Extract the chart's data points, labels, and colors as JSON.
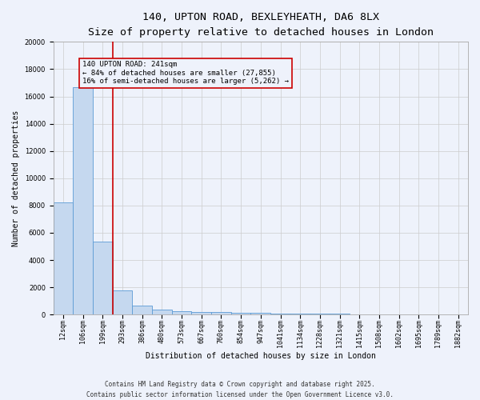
{
  "title_line1": "140, UPTON ROAD, BEXLEYHEATH, DA6 8LX",
  "title_line2": "Size of property relative to detached houses in London",
  "xlabel": "Distribution of detached houses by size in London",
  "ylabel": "Number of detached properties",
  "categories": [
    "12sqm",
    "106sqm",
    "199sqm",
    "293sqm",
    "386sqm",
    "480sqm",
    "573sqm",
    "667sqm",
    "760sqm",
    "854sqm",
    "947sqm",
    "1041sqm",
    "1134sqm",
    "1228sqm",
    "1321sqm",
    "1415sqm",
    "1508sqm",
    "1602sqm",
    "1695sqm",
    "1789sqm",
    "1882sqm"
  ],
  "values": [
    8200,
    16700,
    5350,
    1800,
    680,
    340,
    230,
    200,
    200,
    150,
    100,
    80,
    70,
    60,
    50,
    40,
    35,
    25,
    20,
    10,
    5
  ],
  "bar_color": "#c5d8ef",
  "bar_edge_color": "#5b9bd5",
  "vline_x_index": 2.5,
  "vline_color": "#cc0000",
  "annotation_text": "140 UPTON ROAD: 241sqm\n← 84% of detached houses are smaller (27,855)\n16% of semi-detached houses are larger (5,262) →",
  "annotation_box_color": "#cc0000",
  "annotation_text_color": "#000000",
  "ylim": [
    0,
    20000
  ],
  "yticks": [
    0,
    2000,
    4000,
    6000,
    8000,
    10000,
    12000,
    14000,
    16000,
    18000,
    20000
  ],
  "grid_color": "#cccccc",
  "background_color": "#eef2fb",
  "footer_line1": "Contains HM Land Registry data © Crown copyright and database right 2025.",
  "footer_line2": "Contains public sector information licensed under the Open Government Licence v3.0.",
  "title_fontsize": 9.5,
  "subtitle_fontsize": 8.5,
  "axis_label_fontsize": 7,
  "tick_fontsize": 6,
  "annotation_fontsize": 6.5,
  "footer_fontsize": 5.5
}
